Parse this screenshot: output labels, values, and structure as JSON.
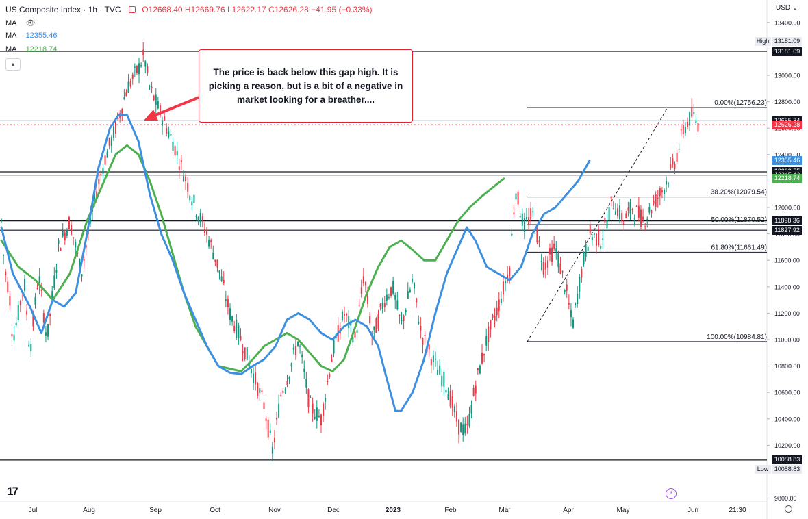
{
  "header": {
    "symbol": "US Composite Index · 1h · TVC",
    "ohlc": "O12668.40 H12669.76 L12622.17 C12626.28 −41.95 (−0.33%)",
    "ma1_label": "MA",
    "ma2_label": "MA",
    "ma2_value": "12355.46",
    "ma3_label": "MA",
    "ma3_value": "12218.74"
  },
  "currency": "USD",
  "annotation": "The price is back below this gap high.  It is picking a reason, but is a bit of a negative in market looking for a breather....",
  "colors": {
    "bull": "#089981",
    "bear": "#f23645",
    "ma_fast": "#3d8fe0",
    "ma_slow": "#4caf50",
    "hline": "#131722"
  },
  "chart_data": {
    "type": "candlestick",
    "y_ticks": [
      13400,
      13200,
      13000,
      12800,
      12600,
      12400,
      12200,
      12000,
      11800,
      11600,
      11400,
      11200,
      11000,
      10800,
      10600,
      10400,
      10200,
      9800
    ],
    "x_ticks": [
      "Jul",
      "Aug",
      "Sep",
      "Oct",
      "Nov",
      "Dec",
      "2023",
      "Feb",
      "Mar",
      "Apr",
      "May",
      "Jun",
      "21:30"
    ],
    "high": {
      "label": "High",
      "value": "13181.09"
    },
    "low": {
      "label": "Low",
      "value": "10088.83"
    },
    "price_tags": [
      {
        "value": "13181.09",
        "kind": "line"
      },
      {
        "value": "12655.84",
        "kind": "line"
      },
      {
        "value": "12626.28",
        "kind": "last"
      },
      {
        "value": "12355.46",
        "kind": "ma_fast"
      },
      {
        "value": "12269.55",
        "kind": "line"
      },
      {
        "value": "12245.43",
        "kind": "line"
      },
      {
        "value": "12218.74",
        "kind": "ma_slow"
      },
      {
        "value": "11898.36",
        "kind": "line"
      },
      {
        "value": "11827.92",
        "kind": "line"
      },
      {
        "value": "10088.83",
        "kind": "line"
      }
    ],
    "horizontal_lines": [
      13181.09,
      12655.84,
      12269.55,
      12245.43,
      11898.36,
      11827.92,
      10088.83
    ],
    "fibonacci": {
      "levels": [
        {
          "label": "0.00%(12756.23)",
          "value": 12756.23
        },
        {
          "label": "38.20%(12079.54)",
          "value": 12079.54
        },
        {
          "label": "50.00%(11870.52)",
          "value": 11870.52
        },
        {
          "label": "61.80%(11661.49)",
          "value": 11661.49
        },
        {
          "label": "100.00%(10984.81)",
          "value": 10984.81
        }
      ]
    },
    "price_path": [
      [
        0,
        11900
      ],
      [
        0.05,
        11550
      ],
      [
        0.1,
        11450
      ],
      [
        0.15,
        11300
      ],
      [
        0.2,
        11000
      ],
      [
        0.3,
        11200
      ],
      [
        0.4,
        11450
      ],
      [
        0.5,
        10900
      ],
      [
        0.65,
        11500
      ],
      [
        0.8,
        11000
      ],
      [
        1.0,
        11700
      ],
      [
        1.2,
        11900
      ],
      [
        1.4,
        11500
      ],
      [
        1.5,
        11750
      ],
      [
        1.65,
        12100
      ],
      [
        1.8,
        12350
      ],
      [
        2.0,
        12600
      ],
      [
        2.2,
        12900
      ],
      [
        2.4,
        13050
      ],
      [
        2.5,
        13150
      ],
      [
        2.6,
        12900
      ],
      [
        2.8,
        12700
      ],
      [
        3.0,
        12500
      ],
      [
        3.2,
        12250
      ],
      [
        3.4,
        12000
      ],
      [
        3.6,
        11800
      ],
      [
        3.8,
        11550
      ],
      [
        4.0,
        11200
      ],
      [
        4.2,
        11000
      ],
      [
        4.4,
        10750
      ],
      [
        4.6,
        10500
      ],
      [
        4.75,
        10150
      ],
      [
        4.9,
        10600
      ],
      [
        5.0,
        10700
      ],
      [
        5.2,
        11000
      ],
      [
        5.4,
        10500
      ],
      [
        5.6,
        10400
      ],
      [
        5.8,
        10900
      ],
      [
        6.0,
        11200
      ],
      [
        6.2,
        11000
      ],
      [
        6.35,
        11500
      ],
      [
        6.5,
        11000
      ],
      [
        6.7,
        11300
      ],
      [
        6.85,
        11400
      ],
      [
        7.0,
        11100
      ],
      [
        7.2,
        11450
      ],
      [
        7.35,
        11050
      ],
      [
        7.6,
        10800
      ],
      [
        7.8,
        10650
      ],
      [
        8.0,
        10350
      ],
      [
        8.15,
        10300
      ],
      [
        8.3,
        10650
      ],
      [
        8.5,
        11000
      ],
      [
        8.7,
        11250
      ],
      [
        8.9,
        11550
      ],
      [
        9.0,
        12150
      ],
      [
        9.15,
        11850
      ],
      [
        9.3,
        11950
      ],
      [
        9.5,
        11550
      ],
      [
        9.7,
        11700
      ],
      [
        9.9,
        11350
      ],
      [
        10.0,
        11100
      ],
      [
        10.15,
        11500
      ],
      [
        10.3,
        11800
      ],
      [
        10.5,
        11750
      ],
      [
        10.7,
        12050
      ],
      [
        10.9,
        11900
      ],
      [
        11.05,
        12000
      ],
      [
        11.25,
        11900
      ],
      [
        11.45,
        12050
      ],
      [
        11.6,
        12150
      ],
      [
        11.8,
        12350
      ],
      [
        11.95,
        12600
      ],
      [
        12.1,
        12700
      ],
      [
        12.2,
        12630
      ]
    ],
    "ma_fast_path": [
      [
        0,
        11850
      ],
      [
        0.2,
        11500
      ],
      [
        0.5,
        11250
      ],
      [
        0.7,
        11050
      ],
      [
        0.9,
        11300
      ],
      [
        1.1,
        11250
      ],
      [
        1.3,
        11350
      ],
      [
        1.5,
        11800
      ],
      [
        1.7,
        12300
      ],
      [
        1.9,
        12600
      ],
      [
        2.05,
        12700
      ],
      [
        2.2,
        12700
      ],
      [
        2.4,
        12500
      ],
      [
        2.6,
        12100
      ],
      [
        2.8,
        11800
      ],
      [
        3.0,
        11600
      ],
      [
        3.2,
        11350
      ],
      [
        3.4,
        11150
      ],
      [
        3.6,
        10950
      ],
      [
        3.8,
        10800
      ],
      [
        4.0,
        10750
      ],
      [
        4.2,
        10740
      ],
      [
        4.4,
        10800
      ],
      [
        4.6,
        10850
      ],
      [
        4.8,
        10950
      ],
      [
        5.0,
        11150
      ],
      [
        5.2,
        11200
      ],
      [
        5.4,
        11150
      ],
      [
        5.6,
        11050
      ],
      [
        5.8,
        11000
      ],
      [
        6.0,
        11100
      ],
      [
        6.2,
        11150
      ],
      [
        6.4,
        11100
      ],
      [
        6.6,
        10950
      ],
      [
        6.75,
        10700
      ],
      [
        6.9,
        10460
      ],
      [
        7.0,
        10460
      ],
      [
        7.2,
        10600
      ],
      [
        7.4,
        10850
      ],
      [
        7.6,
        11200
      ],
      [
        7.8,
        11500
      ],
      [
        8.0,
        11700
      ],
      [
        8.15,
        11850
      ],
      [
        8.3,
        11750
      ],
      [
        8.5,
        11550
      ],
      [
        8.7,
        11500
      ],
      [
        8.9,
        11450
      ],
      [
        9.1,
        11550
      ],
      [
        9.3,
        11800
      ],
      [
        9.5,
        11950
      ],
      [
        9.7,
        12000
      ],
      [
        9.9,
        12100
      ],
      [
        10.1,
        12200
      ],
      [
        10.3,
        12355
      ]
    ],
    "ma_slow_path": [
      [
        0,
        11750
      ],
      [
        0.3,
        11550
      ],
      [
        0.6,
        11450
      ],
      [
        0.9,
        11300
      ],
      [
        1.2,
        11500
      ],
      [
        1.5,
        11900
      ],
      [
        1.8,
        12200
      ],
      [
        2.0,
        12400
      ],
      [
        2.2,
        12470
      ],
      [
        2.4,
        12400
      ],
      [
        2.6,
        12200
      ],
      [
        2.8,
        11950
      ],
      [
        3.0,
        11650
      ],
      [
        3.2,
        11350
      ],
      [
        3.4,
        11100
      ],
      [
        3.6,
        10950
      ],
      [
        3.8,
        10800
      ],
      [
        4.0,
        10780
      ],
      [
        4.2,
        10760
      ],
      [
        4.4,
        10850
      ],
      [
        4.6,
        10950
      ],
      [
        4.8,
        11000
      ],
      [
        5.0,
        11050
      ],
      [
        5.2,
        11000
      ],
      [
        5.4,
        10900
      ],
      [
        5.6,
        10800
      ],
      [
        5.8,
        10760
      ],
      [
        6.0,
        10850
      ],
      [
        6.2,
        11100
      ],
      [
        6.4,
        11350
      ],
      [
        6.6,
        11550
      ],
      [
        6.8,
        11700
      ],
      [
        7.0,
        11750
      ],
      [
        7.2,
        11680
      ],
      [
        7.4,
        11600
      ],
      [
        7.6,
        11600
      ],
      [
        7.8,
        11750
      ],
      [
        8.0,
        11900
      ],
      [
        8.2,
        12000
      ],
      [
        8.4,
        12080
      ],
      [
        8.6,
        12150
      ],
      [
        8.8,
        12218
      ]
    ]
  }
}
